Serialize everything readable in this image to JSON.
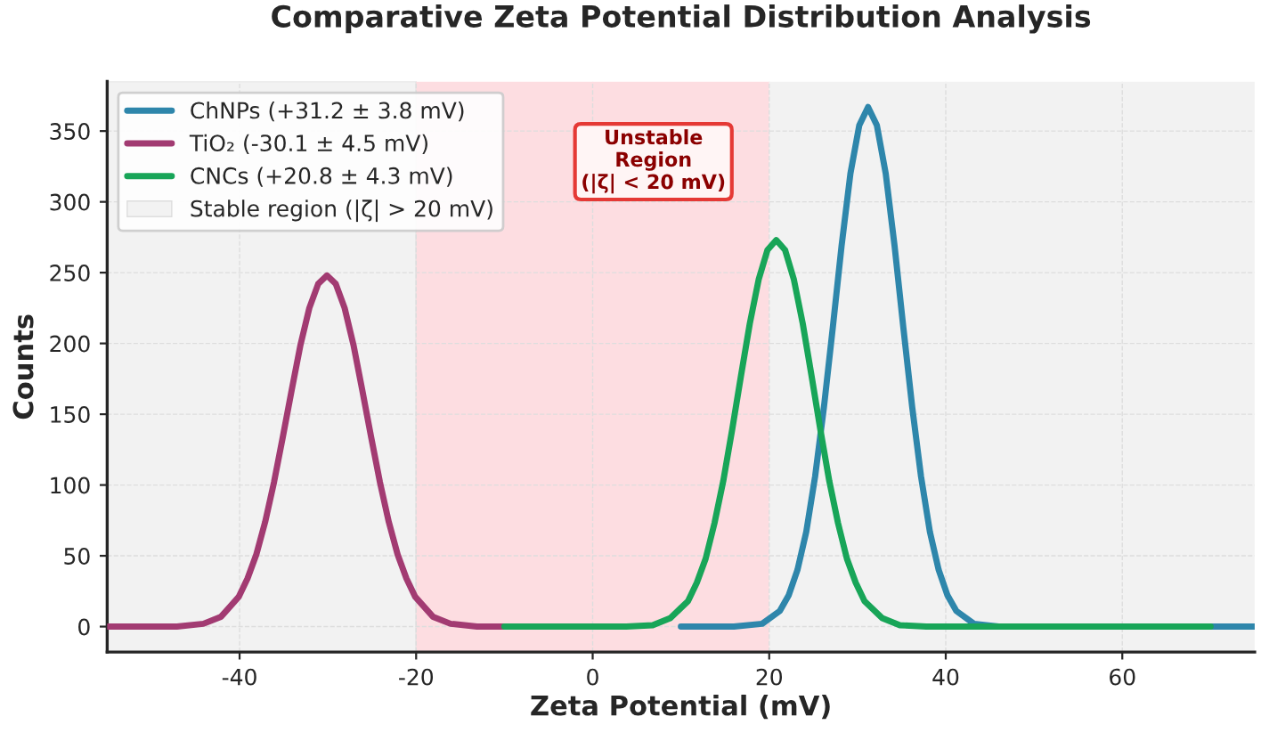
{
  "chart_data": {
    "type": "line",
    "title": "Comparative Zeta Potential Distribution Analysis",
    "xlabel": "Zeta Potential (mV)",
    "ylabel": "Counts",
    "series": [
      {
        "name": "ChNPs (+31.2 ± 3.8 mV)",
        "color": "#2e86ab",
        "x": [
          10,
          16,
          19.2,
          21.2,
          22.2,
          23.2,
          24.2,
          25.2,
          26.2,
          27.2,
          28.2,
          29.2,
          30.2,
          31.2,
          32.2,
          33.2,
          34.2,
          35.2,
          36.2,
          37.2,
          38.2,
          39.2,
          40.2,
          41.2,
          43.2,
          46,
          75
        ],
        "values": [
          0,
          0,
          2,
          11,
          22,
          40,
          67,
          106,
          155,
          211,
          269,
          320,
          354,
          367,
          354,
          320,
          269,
          211,
          155,
          106,
          67,
          40,
          22,
          11,
          2,
          0,
          0
        ]
      },
      {
        "name": "TiO₂ (-30.1 ± 4.5 mV)",
        "color": "#a23b72",
        "x": [
          -55,
          -47.1,
          -44.1,
          -42.1,
          -40.1,
          -39.1,
          -38.1,
          -37.1,
          -36.1,
          -35.1,
          -34.1,
          -33.1,
          -32.1,
          -31.1,
          -30.1,
          -29.1,
          -28.1,
          -27.1,
          -26.1,
          -25.1,
          -24.1,
          -23.1,
          -22.1,
          -21.1,
          -20.1,
          -18.1,
          -16.1,
          -13.1,
          -10
        ],
        "values": [
          0,
          0,
          2,
          7,
          21,
          34,
          51,
          74,
          102,
          134,
          167,
          199,
          225,
          242,
          248,
          242,
          225,
          199,
          167,
          134,
          102,
          74,
          51,
          34,
          21,
          7,
          2,
          0,
          0
        ]
      },
      {
        "name": "CNCs (+20.8 ± 4.3 mV)",
        "color": "#18a558",
        "x": [
          -10,
          3.8,
          6.8,
          8.8,
          10.8,
          11.8,
          12.8,
          13.8,
          14.8,
          15.8,
          16.8,
          17.8,
          18.8,
          19.8,
          20.8,
          21.8,
          22.8,
          23.8,
          24.8,
          25.8,
          26.8,
          27.8,
          28.8,
          29.8,
          30.8,
          32.8,
          34.8,
          37.8,
          70
        ],
        "values": [
          0,
          0,
          1,
          6,
          18,
          31,
          48,
          73,
          103,
          139,
          177,
          214,
          245,
          266,
          273,
          266,
          245,
          214,
          177,
          139,
          103,
          73,
          48,
          31,
          18,
          6,
          1,
          0,
          0
        ]
      }
    ],
    "bands": [
      {
        "axis": "x",
        "from": -55,
        "to": -20,
        "label": "Stable region (|ζ| > 20 mV)",
        "color": "#f2f2f2"
      },
      {
        "axis": "x",
        "from": 20,
        "to": 75,
        "color": "#f2f2f2"
      },
      {
        "axis": "x",
        "from": -20,
        "to": 20,
        "color": "#fddde1"
      }
    ],
    "annotations": [
      "Unstable\nRegion\n(|ζ| < 20 mV)"
    ],
    "xlim": [
      -55,
      75
    ],
    "xticks": [
      -40,
      -20,
      0,
      20,
      40,
      60
    ],
    "ylim": [
      -18,
      385
    ],
    "yticks": [
      0,
      50,
      100,
      150,
      200,
      250,
      300,
      350
    ],
    "grid": true,
    "legend": "top left",
    "line_style": "solid"
  }
}
